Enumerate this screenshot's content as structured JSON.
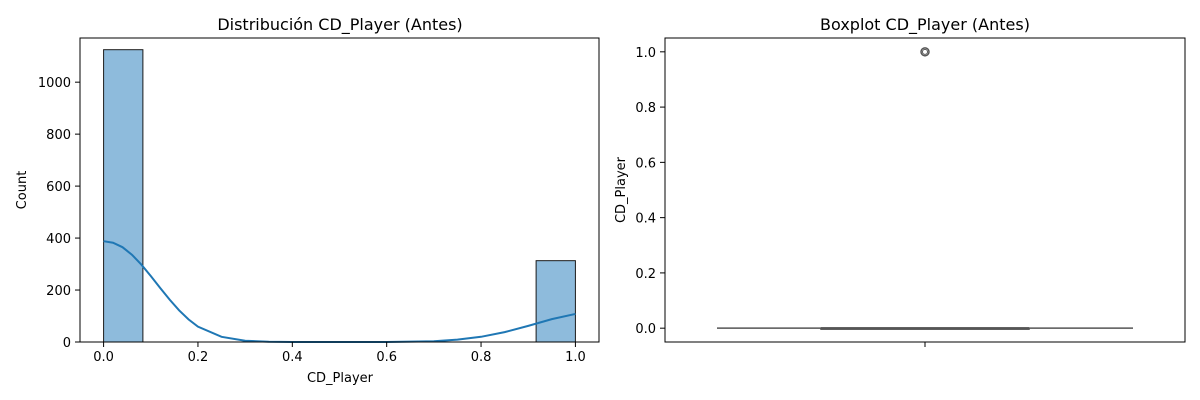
{
  "chart_data": [
    {
      "type": "bar",
      "title": "Distribución CD_Player (Antes)",
      "xlabel": "CD_Player",
      "ylabel": "Count",
      "xlim": [
        -0.05,
        1.05
      ],
      "ylim": [
        0,
        1170
      ],
      "xticks": [
        "0.0",
        "0.2",
        "0.4",
        "0.6",
        "0.8",
        "1.0"
      ],
      "yticks": [
        "0",
        "200",
        "400",
        "600",
        "800",
        "1000"
      ],
      "bins": [
        {
          "x0": 0.0,
          "x1": 0.0833,
          "count": 1125
        },
        {
          "x0": 0.9167,
          "x1": 1.0,
          "count": 313
        }
      ],
      "kde_curve": {
        "x": [
          0.0,
          0.02,
          0.04,
          0.06,
          0.08,
          0.1,
          0.12,
          0.14,
          0.16,
          0.18,
          0.2,
          0.25,
          0.3,
          0.35,
          0.4,
          0.5,
          0.6,
          0.7,
          0.75,
          0.8,
          0.85,
          0.9,
          0.95,
          1.0
        ],
        "y": [
          388,
          382,
          365,
          336,
          298,
          254,
          208,
          163,
          122,
          87,
          59,
          20,
          5,
          1,
          0,
          0,
          0,
          3,
          9,
          20,
          38,
          62,
          88,
          108
        ]
      },
      "colors": {
        "bar_fill": "#8ebbdc",
        "bar_edge": "#1a1a1a",
        "kde_line": "#1f77b4"
      }
    },
    {
      "type": "box",
      "title": "Boxplot CD_Player (Antes)",
      "ylabel": "CD_Player",
      "ylim": [
        -0.05,
        1.05
      ],
      "yticks": [
        "0.0",
        "0.2",
        "0.4",
        "0.6",
        "0.8",
        "1.0"
      ],
      "stats": {
        "min": 0.0,
        "q1": 0.0,
        "median": 0.0,
        "q3": 0.0,
        "max": 0.0
      },
      "outliers": [
        1.0
      ],
      "colors": {
        "box_line": "#555555"
      }
    }
  ]
}
